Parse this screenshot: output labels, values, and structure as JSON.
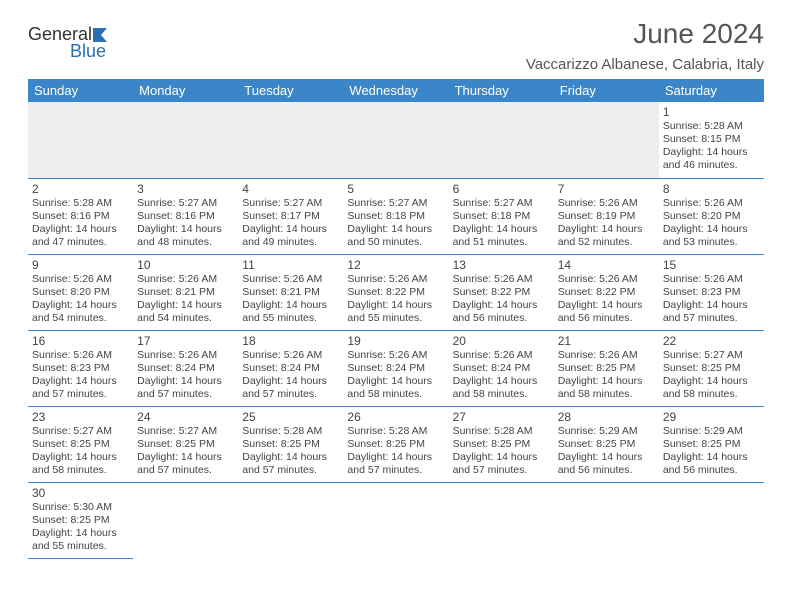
{
  "logo": {
    "general": "General",
    "blue": "Blue"
  },
  "header": {
    "month_title": "June 2024",
    "location": "Vaccarizzo Albanese, Calabria, Italy"
  },
  "colors": {
    "header_bg": "#3b86c8",
    "header_fg": "#ffffff",
    "grid_line": "#3b86c8",
    "empty_bg": "#eeeeee",
    "text": "#444444",
    "logo_blue": "#2a6fb5"
  },
  "day_labels": [
    "Sunday",
    "Monday",
    "Tuesday",
    "Wednesday",
    "Thursday",
    "Friday",
    "Saturday"
  ],
  "weeks": [
    [
      null,
      null,
      null,
      null,
      null,
      null,
      {
        "n": "1",
        "sr": "Sunrise: 5:28 AM",
        "ss": "Sunset: 8:15 PM",
        "dl1": "Daylight: 14 hours",
        "dl2": "and 46 minutes."
      }
    ],
    [
      {
        "n": "2",
        "sr": "Sunrise: 5:28 AM",
        "ss": "Sunset: 8:16 PM",
        "dl1": "Daylight: 14 hours",
        "dl2": "and 47 minutes."
      },
      {
        "n": "3",
        "sr": "Sunrise: 5:27 AM",
        "ss": "Sunset: 8:16 PM",
        "dl1": "Daylight: 14 hours",
        "dl2": "and 48 minutes."
      },
      {
        "n": "4",
        "sr": "Sunrise: 5:27 AM",
        "ss": "Sunset: 8:17 PM",
        "dl1": "Daylight: 14 hours",
        "dl2": "and 49 minutes."
      },
      {
        "n": "5",
        "sr": "Sunrise: 5:27 AM",
        "ss": "Sunset: 8:18 PM",
        "dl1": "Daylight: 14 hours",
        "dl2": "and 50 minutes."
      },
      {
        "n": "6",
        "sr": "Sunrise: 5:27 AM",
        "ss": "Sunset: 8:18 PM",
        "dl1": "Daylight: 14 hours",
        "dl2": "and 51 minutes."
      },
      {
        "n": "7",
        "sr": "Sunrise: 5:26 AM",
        "ss": "Sunset: 8:19 PM",
        "dl1": "Daylight: 14 hours",
        "dl2": "and 52 minutes."
      },
      {
        "n": "8",
        "sr": "Sunrise: 5:26 AM",
        "ss": "Sunset: 8:20 PM",
        "dl1": "Daylight: 14 hours",
        "dl2": "and 53 minutes."
      }
    ],
    [
      {
        "n": "9",
        "sr": "Sunrise: 5:26 AM",
        "ss": "Sunset: 8:20 PM",
        "dl1": "Daylight: 14 hours",
        "dl2": "and 54 minutes."
      },
      {
        "n": "10",
        "sr": "Sunrise: 5:26 AM",
        "ss": "Sunset: 8:21 PM",
        "dl1": "Daylight: 14 hours",
        "dl2": "and 54 minutes."
      },
      {
        "n": "11",
        "sr": "Sunrise: 5:26 AM",
        "ss": "Sunset: 8:21 PM",
        "dl1": "Daylight: 14 hours",
        "dl2": "and 55 minutes."
      },
      {
        "n": "12",
        "sr": "Sunrise: 5:26 AM",
        "ss": "Sunset: 8:22 PM",
        "dl1": "Daylight: 14 hours",
        "dl2": "and 55 minutes."
      },
      {
        "n": "13",
        "sr": "Sunrise: 5:26 AM",
        "ss": "Sunset: 8:22 PM",
        "dl1": "Daylight: 14 hours",
        "dl2": "and 56 minutes."
      },
      {
        "n": "14",
        "sr": "Sunrise: 5:26 AM",
        "ss": "Sunset: 8:22 PM",
        "dl1": "Daylight: 14 hours",
        "dl2": "and 56 minutes."
      },
      {
        "n": "15",
        "sr": "Sunrise: 5:26 AM",
        "ss": "Sunset: 8:23 PM",
        "dl1": "Daylight: 14 hours",
        "dl2": "and 57 minutes."
      }
    ],
    [
      {
        "n": "16",
        "sr": "Sunrise: 5:26 AM",
        "ss": "Sunset: 8:23 PM",
        "dl1": "Daylight: 14 hours",
        "dl2": "and 57 minutes."
      },
      {
        "n": "17",
        "sr": "Sunrise: 5:26 AM",
        "ss": "Sunset: 8:24 PM",
        "dl1": "Daylight: 14 hours",
        "dl2": "and 57 minutes."
      },
      {
        "n": "18",
        "sr": "Sunrise: 5:26 AM",
        "ss": "Sunset: 8:24 PM",
        "dl1": "Daylight: 14 hours",
        "dl2": "and 57 minutes."
      },
      {
        "n": "19",
        "sr": "Sunrise: 5:26 AM",
        "ss": "Sunset: 8:24 PM",
        "dl1": "Daylight: 14 hours",
        "dl2": "and 58 minutes."
      },
      {
        "n": "20",
        "sr": "Sunrise: 5:26 AM",
        "ss": "Sunset: 8:24 PM",
        "dl1": "Daylight: 14 hours",
        "dl2": "and 58 minutes."
      },
      {
        "n": "21",
        "sr": "Sunrise: 5:26 AM",
        "ss": "Sunset: 8:25 PM",
        "dl1": "Daylight: 14 hours",
        "dl2": "and 58 minutes."
      },
      {
        "n": "22",
        "sr": "Sunrise: 5:27 AM",
        "ss": "Sunset: 8:25 PM",
        "dl1": "Daylight: 14 hours",
        "dl2": "and 58 minutes."
      }
    ],
    [
      {
        "n": "23",
        "sr": "Sunrise: 5:27 AM",
        "ss": "Sunset: 8:25 PM",
        "dl1": "Daylight: 14 hours",
        "dl2": "and 58 minutes."
      },
      {
        "n": "24",
        "sr": "Sunrise: 5:27 AM",
        "ss": "Sunset: 8:25 PM",
        "dl1": "Daylight: 14 hours",
        "dl2": "and 57 minutes."
      },
      {
        "n": "25",
        "sr": "Sunrise: 5:28 AM",
        "ss": "Sunset: 8:25 PM",
        "dl1": "Daylight: 14 hours",
        "dl2": "and 57 minutes."
      },
      {
        "n": "26",
        "sr": "Sunrise: 5:28 AM",
        "ss": "Sunset: 8:25 PM",
        "dl1": "Daylight: 14 hours",
        "dl2": "and 57 minutes."
      },
      {
        "n": "27",
        "sr": "Sunrise: 5:28 AM",
        "ss": "Sunset: 8:25 PM",
        "dl1": "Daylight: 14 hours",
        "dl2": "and 57 minutes."
      },
      {
        "n": "28",
        "sr": "Sunrise: 5:29 AM",
        "ss": "Sunset: 8:25 PM",
        "dl1": "Daylight: 14 hours",
        "dl2": "and 56 minutes."
      },
      {
        "n": "29",
        "sr": "Sunrise: 5:29 AM",
        "ss": "Sunset: 8:25 PM",
        "dl1": "Daylight: 14 hours",
        "dl2": "and 56 minutes."
      }
    ],
    [
      {
        "n": "30",
        "sr": "Sunrise: 5:30 AM",
        "ss": "Sunset: 8:25 PM",
        "dl1": "Daylight: 14 hours",
        "dl2": "and 55 minutes."
      },
      null,
      null,
      null,
      null,
      null,
      null
    ]
  ]
}
